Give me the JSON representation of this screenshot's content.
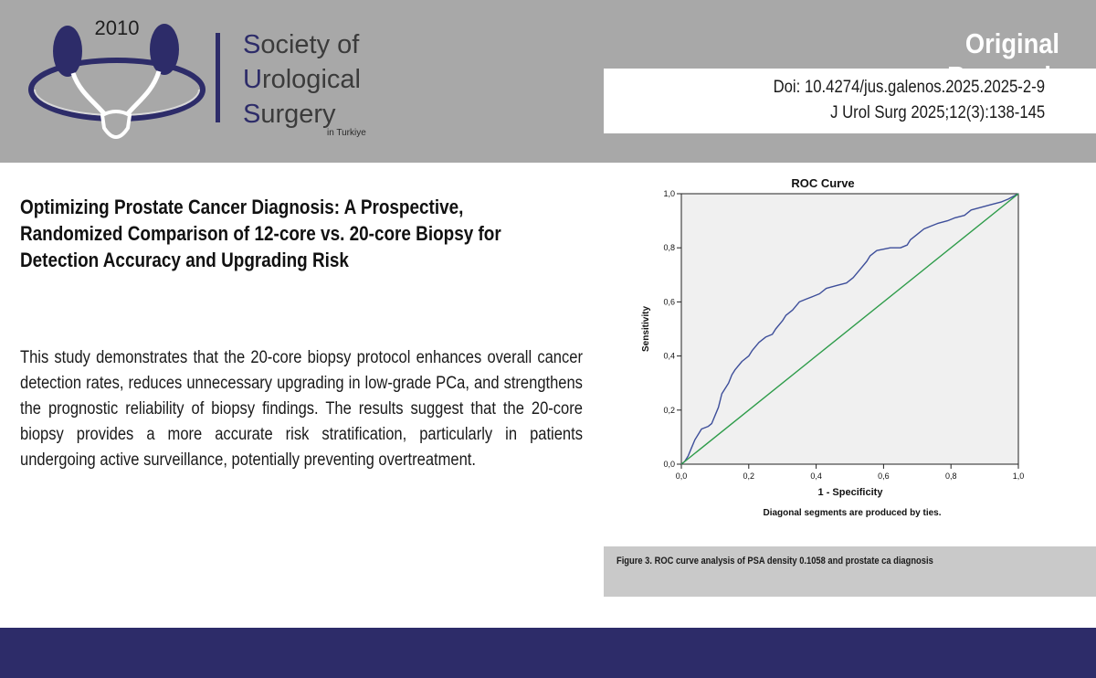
{
  "header": {
    "logo_year": "2010",
    "society_lines": [
      {
        "cap": "S",
        "rest": "ociety of"
      },
      {
        "cap": "U",
        "rest": "rological"
      },
      {
        "cap": "S",
        "rest": "urgery"
      }
    ],
    "society_sub": "in Turkiye",
    "article_type": "Original Research",
    "doi": "Doi: 10.4274/jus.galenos.2025.2025-2-9",
    "citation": "J Urol Surg 2025;12(3):138-145",
    "brand_color": "#2d2c69"
  },
  "article": {
    "title": "Optimizing Prostate Cancer Diagnosis: A Prospective, Randomized Comparison of 12-core vs. 20-core Biopsy for Detection Accuracy and Upgrading Risk",
    "abstract": "This study demonstrates that the 20-core biopsy protocol enhances overall cancer detection rates, reduces unnecessary upgrading in low-grade PCa, and strengthens the prognostic reliability of biopsy findings. The results suggest that the 20-core biopsy provides a more accurate risk stratification, particularly in patients undergoing active surveillance, potentially preventing overtreatment."
  },
  "figure": {
    "caption": "Figure 3. ROC curve analysis of PSA density 0.1058 and prostate ca diagnosis"
  },
  "chart_data": {
    "type": "line",
    "title": "ROC Curve",
    "xlabel": "1 - Specificity",
    "ylabel": "Sensitivity",
    "note": "Diagonal segments are produced by ties.",
    "xlim": [
      0,
      1
    ],
    "ylim": [
      0,
      1
    ],
    "xticks": [
      "0,0",
      "0,2",
      "0,4",
      "0,6",
      "0,8",
      "1,0"
    ],
    "yticks": [
      "0,0",
      "0,2",
      "0,4",
      "0,6",
      "0,8",
      "1,0"
    ],
    "grid": false,
    "series": [
      {
        "color": "#3d4e9a",
        "points": [
          [
            0,
            0
          ],
          [
            0.01,
            0.01
          ],
          [
            0.02,
            0.03
          ],
          [
            0.03,
            0.06
          ],
          [
            0.04,
            0.09
          ],
          [
            0.05,
            0.11
          ],
          [
            0.06,
            0.13
          ],
          [
            0.08,
            0.14
          ],
          [
            0.09,
            0.15
          ],
          [
            0.1,
            0.18
          ],
          [
            0.11,
            0.21
          ],
          [
            0.12,
            0.26
          ],
          [
            0.14,
            0.3
          ],
          [
            0.15,
            0.33
          ],
          [
            0.16,
            0.35
          ],
          [
            0.18,
            0.38
          ],
          [
            0.2,
            0.4
          ],
          [
            0.21,
            0.42
          ],
          [
            0.23,
            0.45
          ],
          [
            0.25,
            0.47
          ],
          [
            0.27,
            0.48
          ],
          [
            0.28,
            0.5
          ],
          [
            0.3,
            0.53
          ],
          [
            0.31,
            0.55
          ],
          [
            0.33,
            0.57
          ],
          [
            0.35,
            0.6
          ],
          [
            0.37,
            0.61
          ],
          [
            0.39,
            0.62
          ],
          [
            0.41,
            0.63
          ],
          [
            0.43,
            0.65
          ],
          [
            0.46,
            0.66
          ],
          [
            0.49,
            0.67
          ],
          [
            0.51,
            0.69
          ],
          [
            0.53,
            0.72
          ],
          [
            0.55,
            0.75
          ],
          [
            0.56,
            0.77
          ],
          [
            0.58,
            0.79
          ],
          [
            0.62,
            0.8
          ],
          [
            0.65,
            0.8
          ],
          [
            0.67,
            0.81
          ],
          [
            0.68,
            0.83
          ],
          [
            0.7,
            0.85
          ],
          [
            0.72,
            0.87
          ],
          [
            0.74,
            0.88
          ],
          [
            0.76,
            0.89
          ],
          [
            0.79,
            0.9
          ],
          [
            0.81,
            0.91
          ],
          [
            0.84,
            0.92
          ],
          [
            0.86,
            0.94
          ],
          [
            0.89,
            0.95
          ],
          [
            0.92,
            0.96
          ],
          [
            0.95,
            0.97
          ],
          [
            0.97,
            0.98
          ],
          [
            1.0,
            1.0
          ]
        ]
      },
      {
        "color": "#2e9c4a",
        "points": [
          [
            0,
            0
          ],
          [
            1,
            1
          ]
        ]
      }
    ]
  }
}
